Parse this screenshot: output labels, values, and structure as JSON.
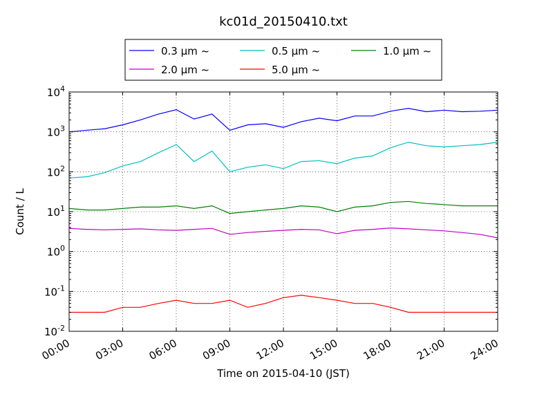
{
  "chart_data": {
    "type": "line",
    "title": "kc01d_20150410.txt",
    "xlabel": "Time on 2015-04-10 (JST)",
    "ylabel": "Count / L",
    "yscale": "log",
    "ylim": [
      0.01,
      10000
    ],
    "xlim": [
      "00:00",
      "24:00"
    ],
    "grid": true,
    "legend_position": "top-center, above plot",
    "x_ticks": [
      "00:00",
      "03:00",
      "06:00",
      "09:00",
      "12:00",
      "15:00",
      "18:00",
      "21:00",
      "24:00"
    ],
    "y_ticks": [
      {
        "base": "10",
        "exp": "4",
        "value": 10000
      },
      {
        "base": "10",
        "exp": "3",
        "value": 1000
      },
      {
        "base": "10",
        "exp": "2",
        "value": 100
      },
      {
        "base": "10",
        "exp": "1",
        "value": 10
      },
      {
        "base": "10",
        "exp": "0",
        "value": 1
      },
      {
        "base": "10",
        "exp": "-1",
        "value": 0.1
      },
      {
        "base": "10",
        "exp": "-2",
        "value": 0.01
      }
    ],
    "x_hours": [
      0,
      1,
      2,
      3,
      4,
      5,
      6,
      7,
      8,
      9,
      10,
      11,
      12,
      13,
      14,
      15,
      16,
      17,
      18,
      19,
      20,
      21,
      22,
      23,
      24
    ],
    "series": [
      {
        "name": "0.3 μm ~",
        "color": "#0000ff",
        "values": [
          1000,
          1100,
          1200,
          1500,
          2000,
          2800,
          3600,
          2100,
          2800,
          1100,
          1500,
          1600,
          1300,
          1800,
          2200,
          1900,
          2500,
          2500,
          3300,
          3900,
          3200,
          3500,
          3200,
          3300,
          3500
        ]
      },
      {
        "name": "0.5 μm ~",
        "color": "#00bfbf",
        "values": [
          70,
          75,
          95,
          140,
          180,
          300,
          480,
          180,
          330,
          100,
          130,
          150,
          120,
          180,
          190,
          160,
          220,
          250,
          400,
          550,
          450,
          420,
          450,
          480,
          550
        ]
      },
      {
        "name": "1.0 μm ~",
        "color": "#008000",
        "values": [
          12,
          11,
          11,
          12,
          13,
          13,
          14,
          12,
          14,
          9,
          10,
          11,
          12,
          14,
          13,
          10,
          13,
          14,
          17,
          18,
          16,
          15,
          14,
          14,
          14
        ]
      },
      {
        "name": "2.0 μm ~",
        "color": "#bf00bf",
        "values": [
          3.8,
          3.6,
          3.5,
          3.6,
          3.7,
          3.5,
          3.4,
          3.6,
          3.8,
          2.7,
          3.0,
          3.2,
          3.4,
          3.6,
          3.5,
          2.8,
          3.4,
          3.6,
          3.9,
          3.7,
          3.5,
          3.3,
          3.0,
          2.7,
          2.2
        ]
      },
      {
        "name": "5.0 μm ~",
        "color": "#ff0000",
        "values": [
          0.03,
          0.03,
          0.03,
          0.04,
          0.04,
          0.05,
          0.06,
          0.05,
          0.05,
          0.06,
          0.04,
          0.05,
          0.07,
          0.08,
          0.07,
          0.06,
          0.05,
          0.05,
          0.04,
          0.03,
          0.03,
          0.03,
          0.03,
          0.03,
          0.03
        ]
      }
    ]
  }
}
